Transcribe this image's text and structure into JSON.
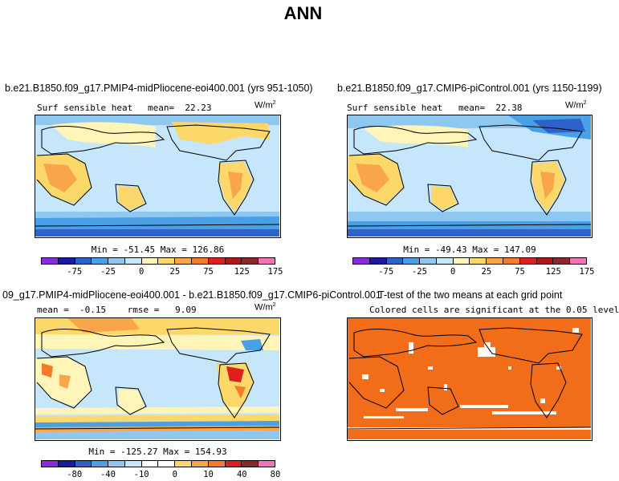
{
  "title": "ANN",
  "panels": {
    "p1": {
      "case": "b.e21.B1850.f09_g17.PMIP4-midPliocene-eoi400.001 (yrs 951-1050)",
      "variable": "Surf sensible heat",
      "stat": "mean=  22.23",
      "units": "W/m",
      "units_exp": "2",
      "minmax": "Min = -51.45 Max = 126.86",
      "tick_labels": [
        "-75",
        "-25",
        "0",
        "25",
        "75",
        "125",
        "175"
      ]
    },
    "p2": {
      "case": "b.e21.B1850.f09_g17.CMIP6-piControl.001 (yrs 1150-1199)",
      "variable": "Surf sensible heat",
      "stat": "mean=  22.38",
      "units": "W/m",
      "units_exp": "2",
      "minmax": "Min = -49.43 Max = 147.09",
      "tick_labels": [
        "-75",
        "-25",
        "0",
        "25",
        "75",
        "125",
        "175"
      ]
    },
    "p3": {
      "case": "09_g17.PMIP4-midPliocene-eoi400.001 - b.e21.B1850.f09_g17.CMIP6-piControl.001",
      "stat": "mean =  -0.15    rmse =   9.09",
      "units": "W/m",
      "units_exp": "2",
      "minmax": "Min = -125.27 Max = 154.93",
      "tick_labels": [
        "-80",
        "-40",
        "-10",
        "0",
        "10",
        "40",
        "80"
      ]
    },
    "p4": {
      "case": "T-test of the two means at each grid point",
      "note": "Colored cells are significant at the 0.05 level"
    }
  },
  "colors": {
    "abs_scale": [
      "#8a2be2",
      "#1a1aa0",
      "#2d62c8",
      "#4aa0e6",
      "#8ec8f0",
      "#c6e6fb",
      "#fff5b8",
      "#fcd76a",
      "#f9a64a",
      "#f57a2a",
      "#dd1f1f",
      "#b01818",
      "#8a2a2a",
      "#f075b8"
    ],
    "diff_scale": [
      "#8a2be2",
      "#1a1aa0",
      "#2d62c8",
      "#4aa0e6",
      "#8ec8f0",
      "#c6e6fb",
      "#ffffff",
      "#ffffff",
      "#fcd76a",
      "#f9a64a",
      "#f57a2a",
      "#dd1f1f",
      "#8a2a2a",
      "#f075b8"
    ],
    "ttest": "#f26d1a"
  }
}
